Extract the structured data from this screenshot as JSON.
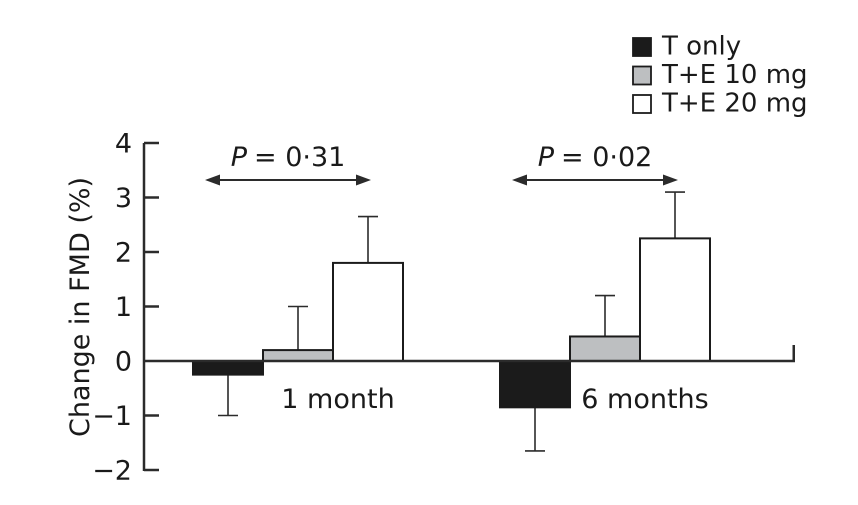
{
  "figure": {
    "background": "#ffffff",
    "ink_color": "#2b2b2b",
    "text_color": "#1a1a1a"
  },
  "chart_data": {
    "type": "bar",
    "title": "",
    "xlabel": "",
    "ylabel": "Change in FMD (%)",
    "ylim": [
      -2,
      4
    ],
    "grid": false,
    "axis_color": "#2b2b2b",
    "yticks": [
      {
        "value": 4,
        "label": "4"
      },
      {
        "value": 3,
        "label": "3"
      },
      {
        "value": 2,
        "label": "2"
      },
      {
        "value": 1,
        "label": "1"
      },
      {
        "value": 0,
        "label": "0"
      },
      {
        "value": -1,
        "label": "−1"
      },
      {
        "value": -2,
        "label": "−2"
      }
    ],
    "categories": [
      "1 month",
      "6 months"
    ],
    "series": [
      {
        "name": "T only",
        "fill": "#1b1b1b",
        "values": [
          -0.25,
          -0.85
        ],
        "error_tips": [
          -1.0,
          -1.65
        ]
      },
      {
        "name": "T+E 10 mg",
        "fill": "#bdbfc1",
        "values": [
          0.2,
          0.45
        ],
        "error_tips": [
          1.0,
          1.2
        ]
      },
      {
        "name": "T+E 20 mg",
        "fill": "#ffffff",
        "values": [
          1.8,
          2.25
        ],
        "error_tips": [
          2.65,
          3.1
        ]
      }
    ],
    "error_bar_style": "one-sided away from zero, capped tips",
    "annotations": [
      {
        "p_label": "P",
        "value_text": "= 0·31",
        "category": "1 month"
      },
      {
        "p_label": "P",
        "value_text": "= 0·02",
        "category": "6 months"
      }
    ],
    "legend": {
      "position": "top-right",
      "entries": [
        "T only",
        "T+E 10 mg",
        "T+E 20 mg"
      ]
    }
  }
}
